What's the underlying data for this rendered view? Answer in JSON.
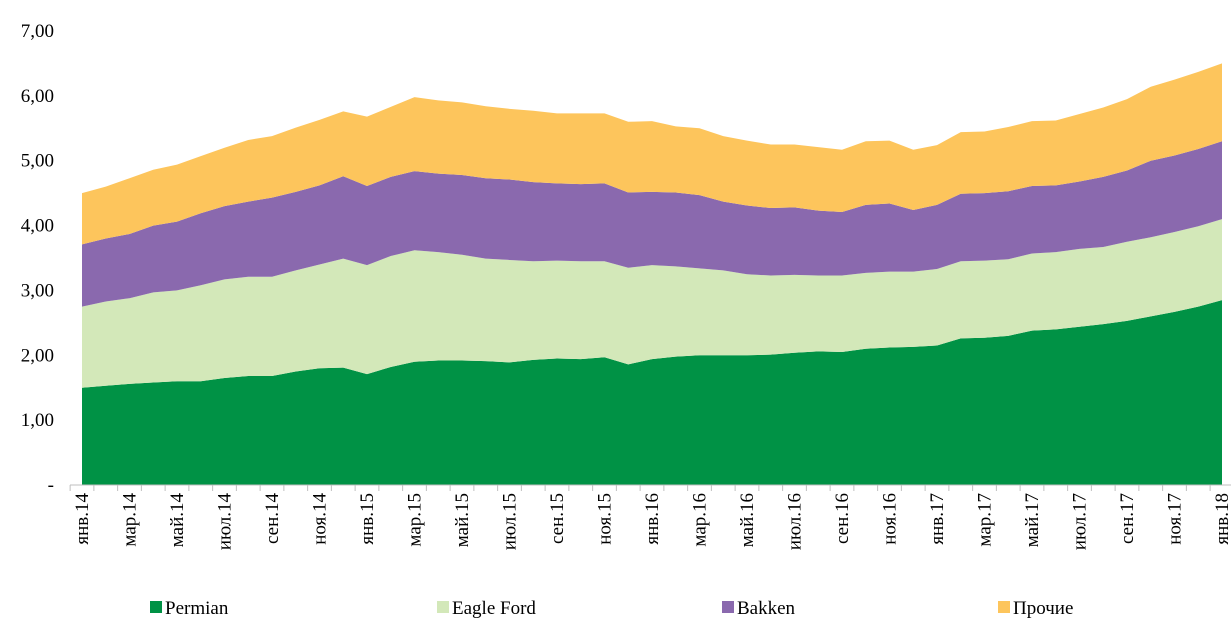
{
  "chart_data": {
    "type": "stacked_area",
    "categories": [
      "янв.14",
      null,
      "мар.14",
      null,
      "май.14",
      null,
      "июл.14",
      null,
      "сен.14",
      null,
      "ноя.14",
      null,
      "янв.15",
      null,
      "мар.15",
      null,
      "май.15",
      null,
      "июл.15",
      null,
      "сен.15",
      null,
      "ноя.15",
      null,
      "янв.16",
      null,
      "мар.16",
      null,
      "май.16",
      null,
      "июл.16",
      null,
      "сен.16",
      null,
      "ноя.16",
      null,
      "янв.17",
      null,
      "мар.17",
      null,
      "май.17",
      null,
      "июл.17",
      null,
      "сен.17",
      null,
      "ноя.17",
      null,
      "янв.18"
    ],
    "series": [
      {
        "name": "Permian",
        "color": "#009245",
        "values": [
          1.5,
          1.53,
          1.56,
          1.58,
          1.6,
          1.6,
          1.65,
          1.68,
          1.68,
          1.75,
          1.8,
          1.81,
          1.71,
          1.82,
          1.9,
          1.92,
          1.92,
          1.91,
          1.89,
          1.93,
          1.95,
          1.94,
          1.97,
          1.86,
          1.94,
          1.98,
          2.0,
          2.0,
          2.0,
          2.01,
          2.04,
          2.06,
          2.05,
          2.1,
          2.12,
          2.13,
          2.15,
          2.26,
          2.27,
          2.3,
          2.38,
          2.4,
          2.44,
          2.48,
          2.53,
          2.6,
          2.67,
          2.75,
          2.85
        ]
      },
      {
        "name": "Eagle Ford",
        "color": "#d3e8b9",
        "values": [
          1.25,
          1.3,
          1.32,
          1.39,
          1.4,
          1.48,
          1.52,
          1.53,
          1.53,
          1.56,
          1.6,
          1.68,
          1.68,
          1.71,
          1.72,
          1.67,
          1.63,
          1.58,
          1.58,
          1.52,
          1.51,
          1.51,
          1.48,
          1.49,
          1.45,
          1.39,
          1.34,
          1.31,
          1.25,
          1.22,
          1.2,
          1.17,
          1.18,
          1.17,
          1.17,
          1.16,
          1.18,
          1.19,
          1.19,
          1.18,
          1.19,
          1.19,
          1.2,
          1.19,
          1.22,
          1.22,
          1.23,
          1.24,
          1.25
        ]
      },
      {
        "name": "Bakken",
        "color": "#8a69ae",
        "values": [
          0.96,
          0.97,
          0.99,
          1.03,
          1.06,
          1.11,
          1.13,
          1.16,
          1.22,
          1.21,
          1.22,
          1.27,
          1.22,
          1.22,
          1.22,
          1.21,
          1.23,
          1.24,
          1.24,
          1.22,
          1.19,
          1.19,
          1.2,
          1.16,
          1.13,
          1.14,
          1.13,
          1.06,
          1.06,
          1.04,
          1.04,
          1.0,
          0.98,
          1.05,
          1.05,
          0.95,
          0.99,
          1.04,
          1.04,
          1.05,
          1.04,
          1.03,
          1.04,
          1.08,
          1.1,
          1.18,
          1.18,
          1.19,
          1.2
        ]
      },
      {
        "name": "Прочие",
        "color": "#fdc55c",
        "values": [
          0.79,
          0.8,
          0.86,
          0.86,
          0.88,
          0.88,
          0.9,
          0.95,
          0.95,
          0.99,
          1.01,
          1.0,
          1.07,
          1.08,
          1.14,
          1.13,
          1.12,
          1.11,
          1.09,
          1.1,
          1.08,
          1.09,
          1.08,
          1.09,
          1.09,
          1.02,
          1.03,
          1.01,
          1.0,
          0.98,
          0.97,
          0.98,
          0.96,
          0.98,
          0.97,
          0.93,
          0.92,
          0.95,
          0.95,
          0.99,
          1.0,
          1.0,
          1.04,
          1.07,
          1.1,
          1.14,
          1.17,
          1.19,
          1.2
        ]
      }
    ],
    "ylim": [
      0,
      7
    ],
    "yticks": [
      {
        "value": 0,
        "label": "-"
      },
      {
        "value": 1,
        "label": "1,00"
      },
      {
        "value": 2,
        "label": "2,00"
      },
      {
        "value": 3,
        "label": "3,00"
      },
      {
        "value": 4,
        "label": "4,00"
      },
      {
        "value": 5,
        "label": "5,00"
      },
      {
        "value": 6,
        "label": "6,00"
      },
      {
        "value": 7,
        "label": "7,00"
      }
    ],
    "legend": "bottom"
  }
}
